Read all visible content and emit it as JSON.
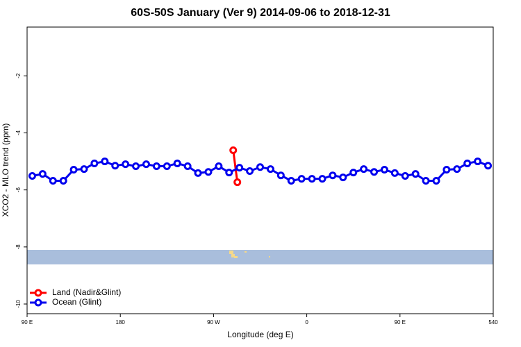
{
  "chart_data": {
    "type": "line",
    "title": "60S-50S January (Ver 9)   2014-09-06 to 2018-12-31",
    "x_label": "Longitude (deg E)",
    "y_label": "XCO2 - MLO trend (ppm)",
    "xlim": [
      90,
      540
    ],
    "xticks": [
      {
        "value": 90,
        "label": "90 E"
      },
      180,
      {
        "value": 270,
        "label": "90 W"
      },
      {
        "value": 360,
        "label": "0"
      },
      {
        "value": 450,
        "label": "90 E"
      },
      540
    ],
    "ylim": [
      -10.34,
      -0.29
    ],
    "yticks": [
      -10,
      -8,
      -6,
      -4,
      -2
    ],
    "legend": "bottom-left",
    "series": [
      {
        "name": "Land (Nadir&Glint)",
        "color": "#ff0000",
        "x": [
          289,
          293
        ],
        "values": [
          -4.61,
          -5.73
        ]
      },
      {
        "name": "Ocean (Glint)",
        "color": "#0000ee",
        "x": [
          95,
          105,
          115,
          125,
          135,
          145,
          155,
          165,
          175,
          185,
          195,
          205,
          215,
          225,
          235,
          245,
          255,
          265,
          275,
          285,
          295,
          305,
          315,
          325,
          335,
          345,
          355,
          365,
          375,
          385,
          395,
          405,
          415,
          425,
          435,
          445,
          455,
          465,
          475,
          485,
          495,
          505,
          515,
          525,
          535
        ],
        "values": [
          -5.51,
          -5.44,
          -5.68,
          -5.68,
          -5.29,
          -5.27,
          -5.07,
          -5.0,
          -5.15,
          -5.1,
          -5.17,
          -5.1,
          -5.17,
          -5.17,
          -5.07,
          -5.17,
          -5.41,
          -5.37,
          -5.17,
          -5.39,
          -5.22,
          -5.34,
          -5.2,
          -5.27,
          -5.49,
          -5.68,
          -5.61,
          -5.61,
          -5.61,
          -5.49,
          -5.56,
          -5.39,
          -5.27,
          -5.37,
          -5.29,
          -5.41,
          -5.51,
          -5.44,
          -5.68,
          -5.68,
          -5.29,
          -5.27,
          -5.07,
          -5.0,
          -5.15
        ]
      }
    ]
  }
}
